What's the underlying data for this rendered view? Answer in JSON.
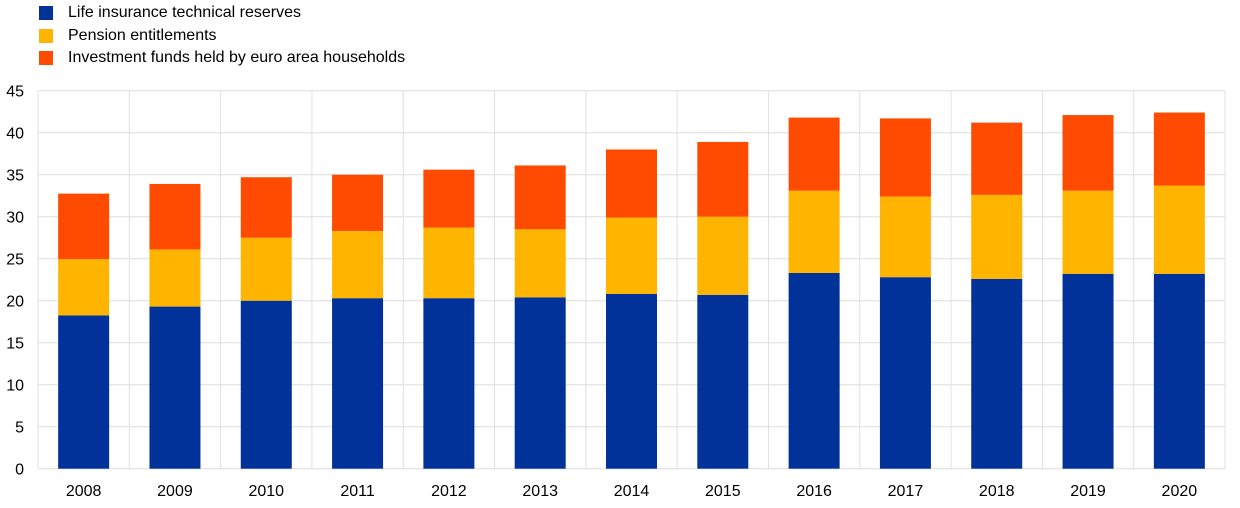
{
  "chart_data": {
    "type": "bar",
    "stacked": true,
    "title": "",
    "xlabel": "",
    "ylabel": "",
    "ylim": [
      0,
      45
    ],
    "yticks": [
      0,
      5,
      10,
      15,
      20,
      25,
      30,
      35,
      40,
      45
    ],
    "grid": true,
    "legend_position": "top-left",
    "categories": [
      "2008",
      "2009",
      "2010",
      "2011",
      "2012",
      "2013",
      "2014",
      "2015",
      "2016",
      "2017",
      "2018",
      "2019",
      "2020"
    ],
    "series": [
      {
        "name": "Life insurance technical reserves",
        "color": "#003299",
        "values": [
          18.25,
          19.3,
          20.0,
          20.3,
          20.3,
          20.4,
          20.8,
          20.7,
          23.3,
          22.8,
          22.6,
          23.2,
          23.2
        ]
      },
      {
        "name": "Pension entitlements",
        "color": "#FFB400",
        "values": [
          6.7,
          6.8,
          7.5,
          8.0,
          8.4,
          8.1,
          9.1,
          9.3,
          9.8,
          9.6,
          10.0,
          9.9,
          10.5
        ]
      },
      {
        "name": "Investment funds held by euro area households",
        "color": "#FF4B00",
        "values": [
          7.8,
          7.8,
          7.2,
          6.7,
          6.9,
          7.6,
          8.1,
          8.9,
          8.7,
          9.3,
          8.6,
          9.0,
          8.7
        ]
      }
    ]
  }
}
